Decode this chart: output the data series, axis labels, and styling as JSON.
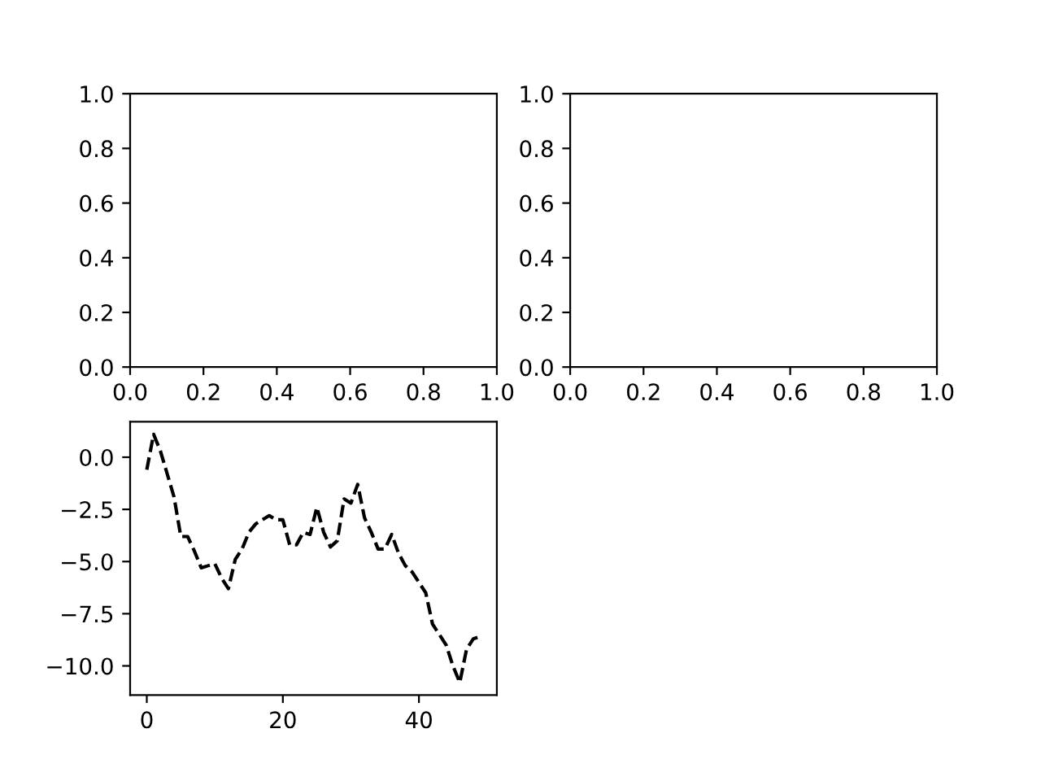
{
  "chart_data": [
    {
      "type": "line",
      "xlim": [
        0,
        1
      ],
      "ylim": [
        0,
        1
      ],
      "xticks": [
        {
          "value": 0,
          "label": "0.0"
        },
        {
          "value": 0.2,
          "label": "0.2"
        },
        {
          "value": 0.4,
          "label": "0.4"
        },
        {
          "value": 0.6,
          "label": "0.6"
        },
        {
          "value": 0.8,
          "label": "0.8"
        },
        {
          "value": 1,
          "label": "1.0"
        }
      ],
      "yticks": [
        {
          "value": 0,
          "label": "0.0"
        },
        {
          "value": 0.2,
          "label": "0.2"
        },
        {
          "value": 0.4,
          "label": "0.4"
        },
        {
          "value": 0.6,
          "label": "0.6"
        },
        {
          "value": 0.8,
          "label": "0.8"
        },
        {
          "value": 1,
          "label": "1.0"
        }
      ]
    },
    {
      "type": "line",
      "xlim": [
        0,
        1
      ],
      "ylim": [
        0,
        1
      ],
      "xticks": [
        {
          "value": 0,
          "label": "0.0"
        },
        {
          "value": 0.2,
          "label": "0.2"
        },
        {
          "value": 0.4,
          "label": "0.4"
        },
        {
          "value": 0.6,
          "label": "0.6"
        },
        {
          "value": 0.8,
          "label": "0.8"
        },
        {
          "value": 1,
          "label": "1.0"
        }
      ],
      "yticks": [
        {
          "value": 0,
          "label": "0.0"
        },
        {
          "value": 0.2,
          "label": "0.2"
        },
        {
          "value": 0.4,
          "label": "0.4"
        },
        {
          "value": 0.6,
          "label": "0.6"
        },
        {
          "value": 0.8,
          "label": "0.8"
        },
        {
          "value": 1,
          "label": "1.0"
        }
      ]
    },
    {
      "type": "line",
      "line_style": "dashed",
      "xlim": [
        -2.45,
        51.45
      ],
      "ylim": [
        -11.4,
        1.7
      ],
      "x": [
        0,
        1,
        2,
        3,
        4,
        5,
        6,
        7,
        8,
        9,
        10,
        11,
        12,
        13,
        14,
        15,
        16,
        17,
        18,
        19,
        20,
        21,
        22,
        23,
        24,
        25,
        26,
        27,
        28,
        29,
        30,
        31,
        32,
        33,
        34,
        35,
        36,
        37,
        38,
        39,
        40,
        41,
        42,
        43,
        44,
        45,
        46,
        47,
        48,
        49
      ],
      "series": [
        {
          "color": "#000000",
          "values": [
            -0.6,
            1.1,
            0.3,
            -0.8,
            -1.9,
            -3.8,
            -3.8,
            -4.5,
            -5.3,
            -5.2,
            -5.1,
            -5.8,
            -6.3,
            -4.9,
            -4.4,
            -3.6,
            -3.2,
            -3.0,
            -2.8,
            -3.0,
            -3.0,
            -4.2,
            -4.2,
            -3.6,
            -3.7,
            -2.4,
            -3.6,
            -4.3,
            -4.0,
            -2.0,
            -2.2,
            -1.3,
            -2.9,
            -3.6,
            -4.4,
            -4.4,
            -3.7,
            -4.6,
            -5.2,
            -5.5,
            -6.0,
            -6.5,
            -8.0,
            -8.5,
            -9.0,
            -10.0,
            -10.8,
            -9.2,
            -8.7,
            -8.6
          ]
        }
      ],
      "xticks": [
        0,
        20,
        40
      ],
      "yticks": [
        {
          "value": 0,
          "label": "0.0"
        },
        {
          "value": -2.5,
          "label": "−2.5"
        },
        {
          "value": -5,
          "label": "−5.0"
        },
        {
          "value": -7.5,
          "label": "−7.5"
        },
        {
          "value": -10,
          "label": "−10.0"
        }
      ]
    }
  ]
}
